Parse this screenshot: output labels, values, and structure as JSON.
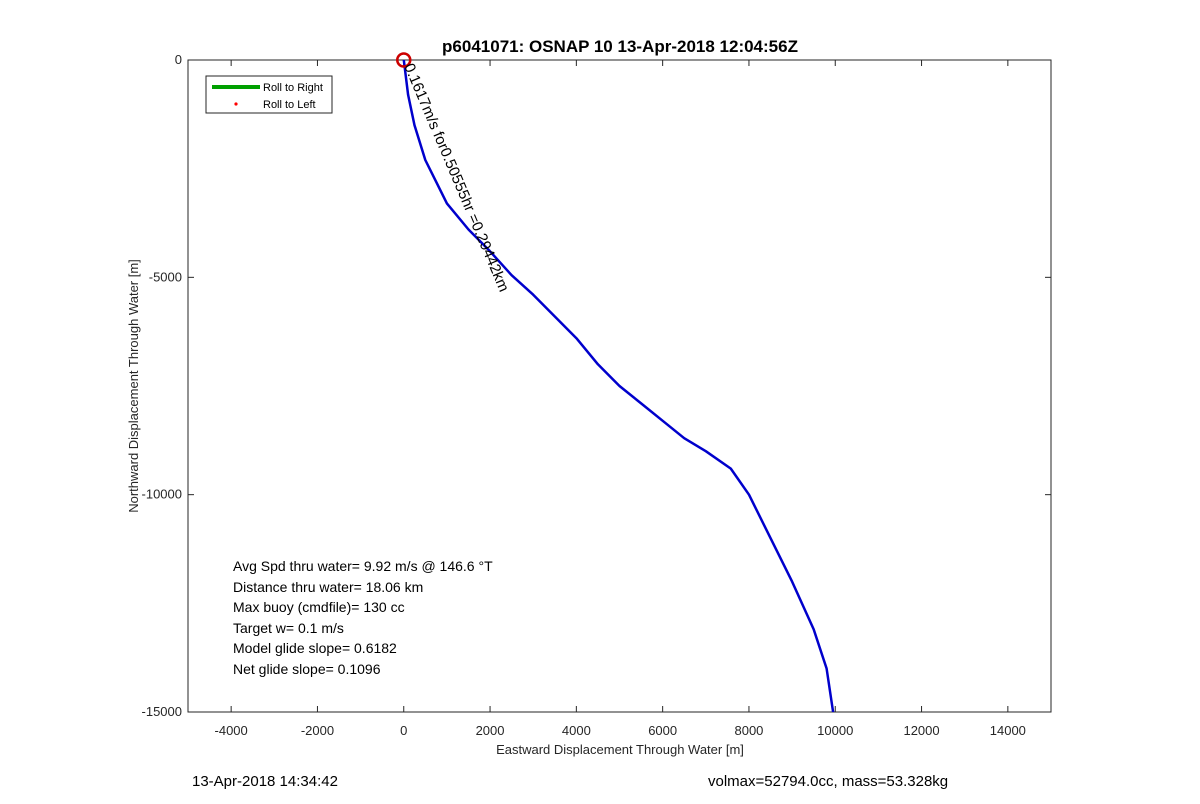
{
  "chart_data": {
    "type": "line",
    "title": "p6041071: OSNAP 10 13-Apr-2018 12:04:56Z",
    "xlabel": "Eastward Displacement Through Water [m]",
    "ylabel": "Northward Displacement Through Water [m]",
    "xlim": [
      -5000,
      15000
    ],
    "ylim": [
      -15000,
      0
    ],
    "xticks": [
      -4000,
      -2000,
      0,
      2000,
      4000,
      6000,
      8000,
      10000,
      12000,
      14000
    ],
    "yticks": [
      0,
      -5000,
      -10000,
      -15000
    ],
    "grid": false,
    "legend": {
      "placement": "top-left",
      "entries": [
        {
          "label": "Roll to Right",
          "color": "#00a000",
          "marker": "line"
        },
        {
          "label": "Roll to Left",
          "color": "#ff0000",
          "marker": "dot"
        }
      ]
    },
    "series": [
      {
        "color": "#0000cc",
        "x": [
          0,
          100,
          250,
          500,
          750,
          1000,
          1500,
          2000,
          2500,
          3000,
          3500,
          4000,
          4500,
          5000,
          5500,
          6000,
          6500,
          7000,
          7580,
          8000,
          8500,
          9000,
          9500,
          9800,
          9950
        ],
        "y": [
          0,
          -800,
          -1500,
          -2300,
          -2800,
          -3300,
          -3900,
          -4400,
          -4950,
          -5400,
          -5900,
          -6400,
          -7000,
          -7500,
          -7900,
          -8300,
          -8700,
          -9000,
          -9400,
          -10000,
          -11000,
          -12000,
          -13100,
          -14000,
          -15000
        ]
      }
    ],
    "markers": [
      {
        "label": "start-circle",
        "x": 0,
        "y": 0,
        "color": "#cc0000"
      }
    ],
    "annotations": [
      {
        "text": "0.1617m/s for0.50555hr =0.29442km",
        "x": 0,
        "y": 0,
        "rotation_deg": 67
      }
    ]
  },
  "stats": [
    "Avg Spd thru water=  9.92 m/s @ 146.6 °T",
    "Distance thru water= 18.06 km",
    "Max buoy (cmdfile)= 130 cc",
    "Target w= 0.1 m/s",
    "Model glide slope= 0.6182",
    "Net glide slope= 0.1096"
  ],
  "footer": {
    "left": "13-Apr-2018 14:34:42",
    "right": "volmax=52794.0cc, mass=53.328kg"
  }
}
